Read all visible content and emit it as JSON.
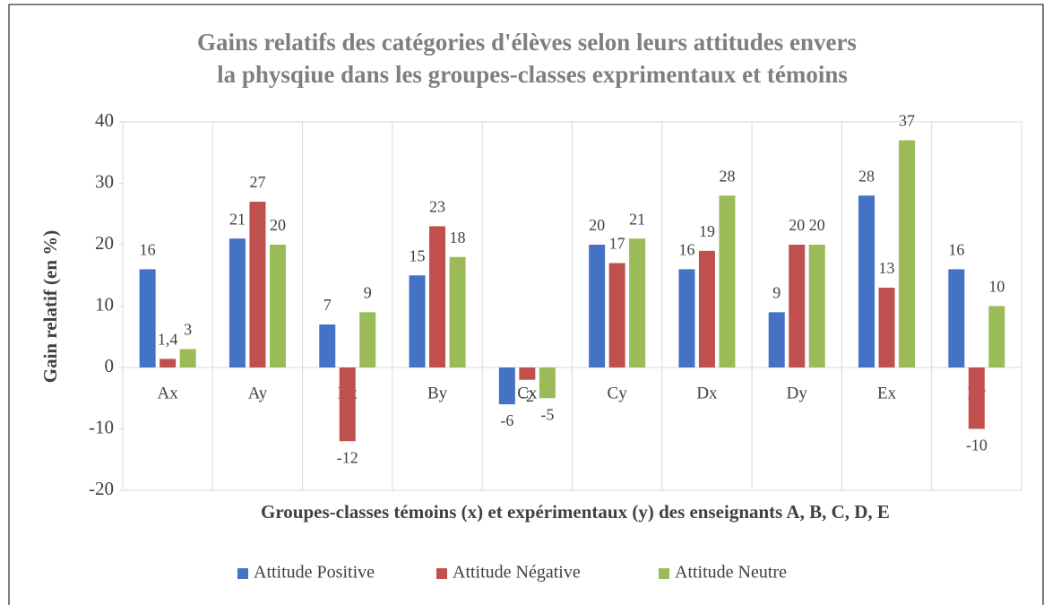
{
  "chart_data": {
    "type": "bar",
    "title": [
      "Gains relatifs des catégories d'élèves selon leurs attitudes envers",
      "la physqiue dans les groupes-classes exprimentaux et témoins"
    ],
    "y_label": "Gain relatif (en %)",
    "x_label": "Groupes-classes témoins (x) et expérimentaux (y) des enseignants A, B, C, D, E",
    "categories": [
      "Ax",
      "Ay",
      "Bx",
      "By",
      "Cx",
      "Cy",
      "Dx",
      "Dy",
      "Ex",
      "Ey"
    ],
    "series": [
      {
        "name": "Attitude Positive",
        "color": "#4472c4",
        "values": [
          16,
          21,
          7,
          15,
          -6,
          20,
          16,
          9,
          28,
          16
        ]
      },
      {
        "name": "Attitude Négative",
        "color": "#c0504d",
        "values": [
          1.4,
          27,
          -12,
          23,
          -2,
          17,
          19,
          20,
          13,
          -10
        ],
        "value_labels": [
          "1,4",
          "27",
          "-12",
          "23",
          "-2",
          "17",
          "19",
          "20",
          "13",
          "-10"
        ]
      },
      {
        "name": "Attitude Neutre",
        "color": "#9bbb59",
        "values": [
          3,
          20,
          9,
          18,
          -5,
          21,
          28,
          20,
          37,
          10
        ]
      }
    ],
    "ylim": [
      -20,
      40
    ],
    "yticks": [
      -20,
      -10,
      0,
      10,
      20,
      30,
      40
    ],
    "legend": "bottom"
  }
}
